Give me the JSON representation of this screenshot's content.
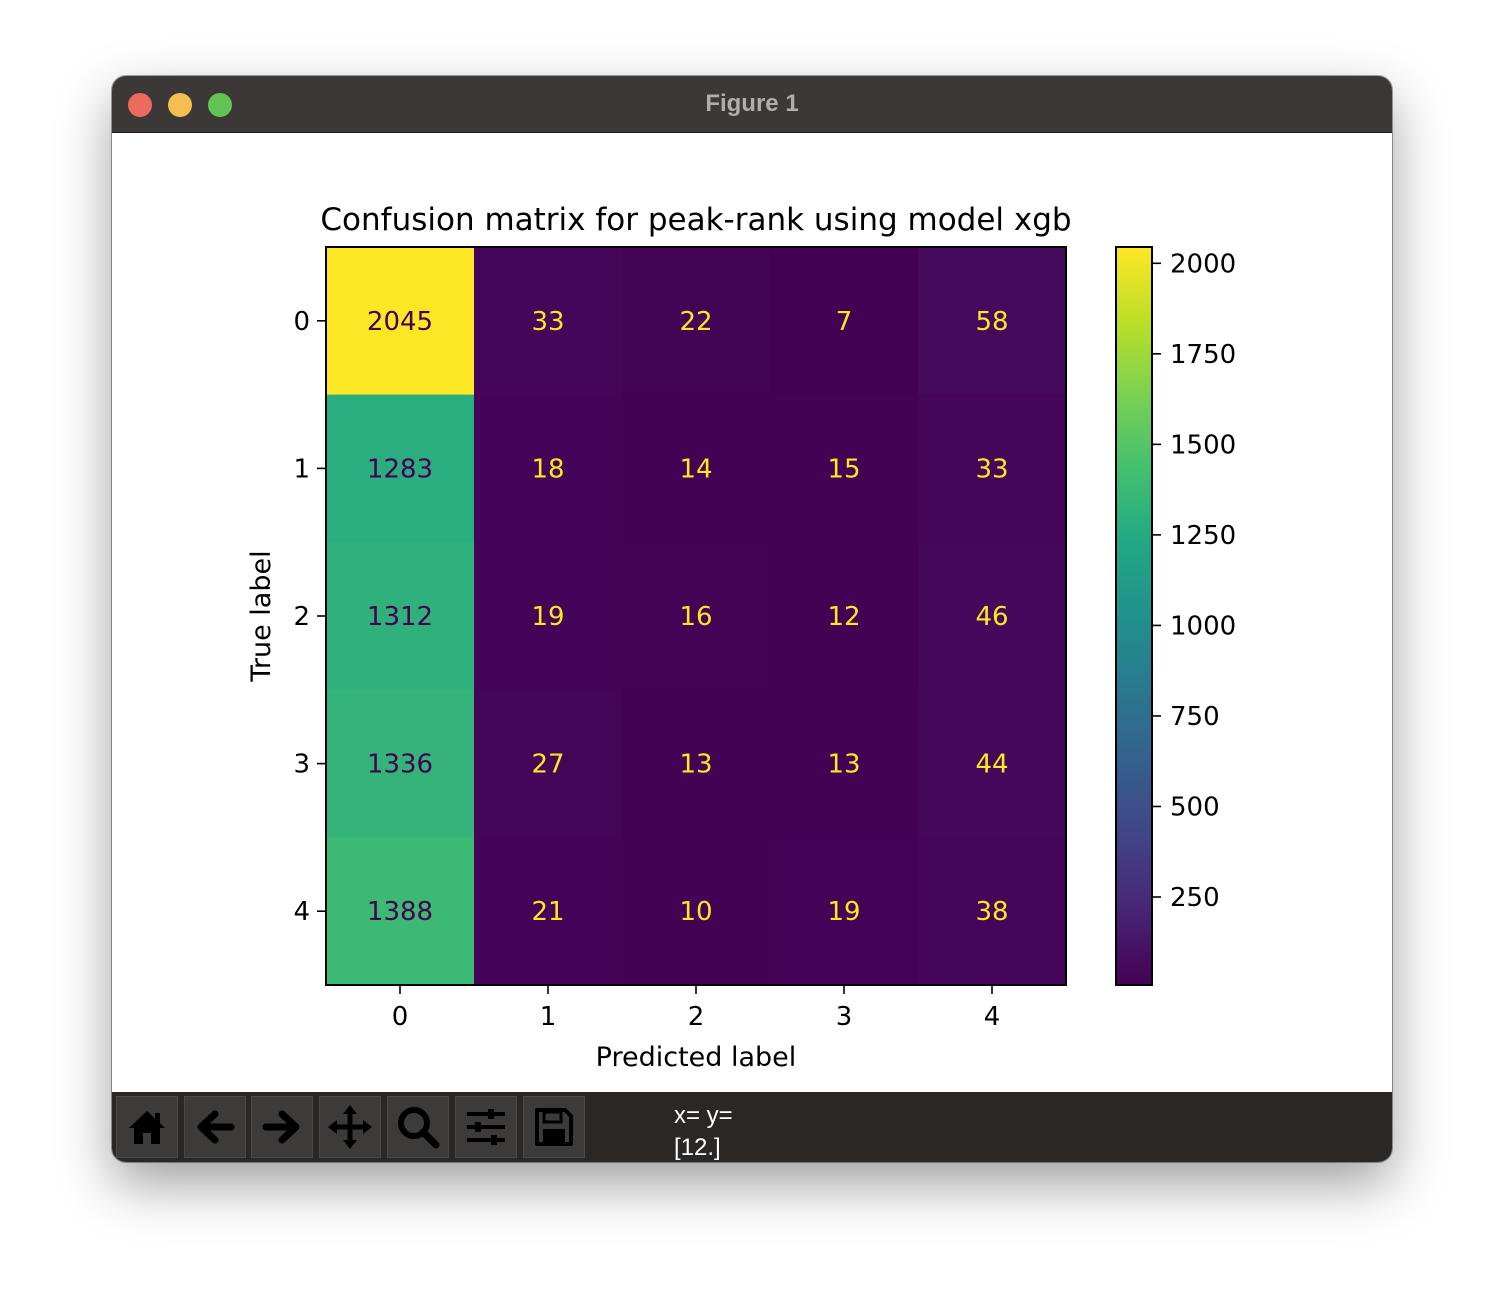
{
  "window": {
    "title": "Figure 1"
  },
  "chart_data": {
    "type": "heatmap",
    "title": "Confusion matrix for peak-rank using model xgb",
    "xlabel": "Predicted label",
    "ylabel": "True label",
    "x_categories": [
      "0",
      "1",
      "2",
      "3",
      "4"
    ],
    "y_categories": [
      "0",
      "1",
      "2",
      "3",
      "4"
    ],
    "values": [
      [
        2045,
        33,
        22,
        7,
        58
      ],
      [
        1283,
        18,
        14,
        15,
        33
      ],
      [
        1312,
        19,
        16,
        12,
        46
      ],
      [
        1336,
        27,
        13,
        13,
        44
      ],
      [
        1388,
        21,
        10,
        19,
        38
      ]
    ],
    "colormap": "viridis",
    "color_range": [
      7,
      2045
    ],
    "colorbar_ticks": [
      250,
      500,
      750,
      1000,
      1250,
      1500,
      1750,
      2000
    ],
    "dark_text_color": "#440154",
    "light_text_color": "#fde725"
  },
  "toolbar": {
    "tools": [
      {
        "name": "home-icon",
        "label": "Home"
      },
      {
        "name": "back-arrow-icon",
        "label": "Back"
      },
      {
        "name": "forward-arrow-icon",
        "label": "Forward"
      },
      {
        "name": "pan-icon",
        "label": "Pan"
      },
      {
        "name": "zoom-icon",
        "label": "Zoom"
      },
      {
        "name": "sliders-icon",
        "label": "Configure subplots"
      },
      {
        "name": "save-icon",
        "label": "Save"
      }
    ],
    "coords_line1": "x= y=",
    "coords_line2": "[12.]"
  }
}
